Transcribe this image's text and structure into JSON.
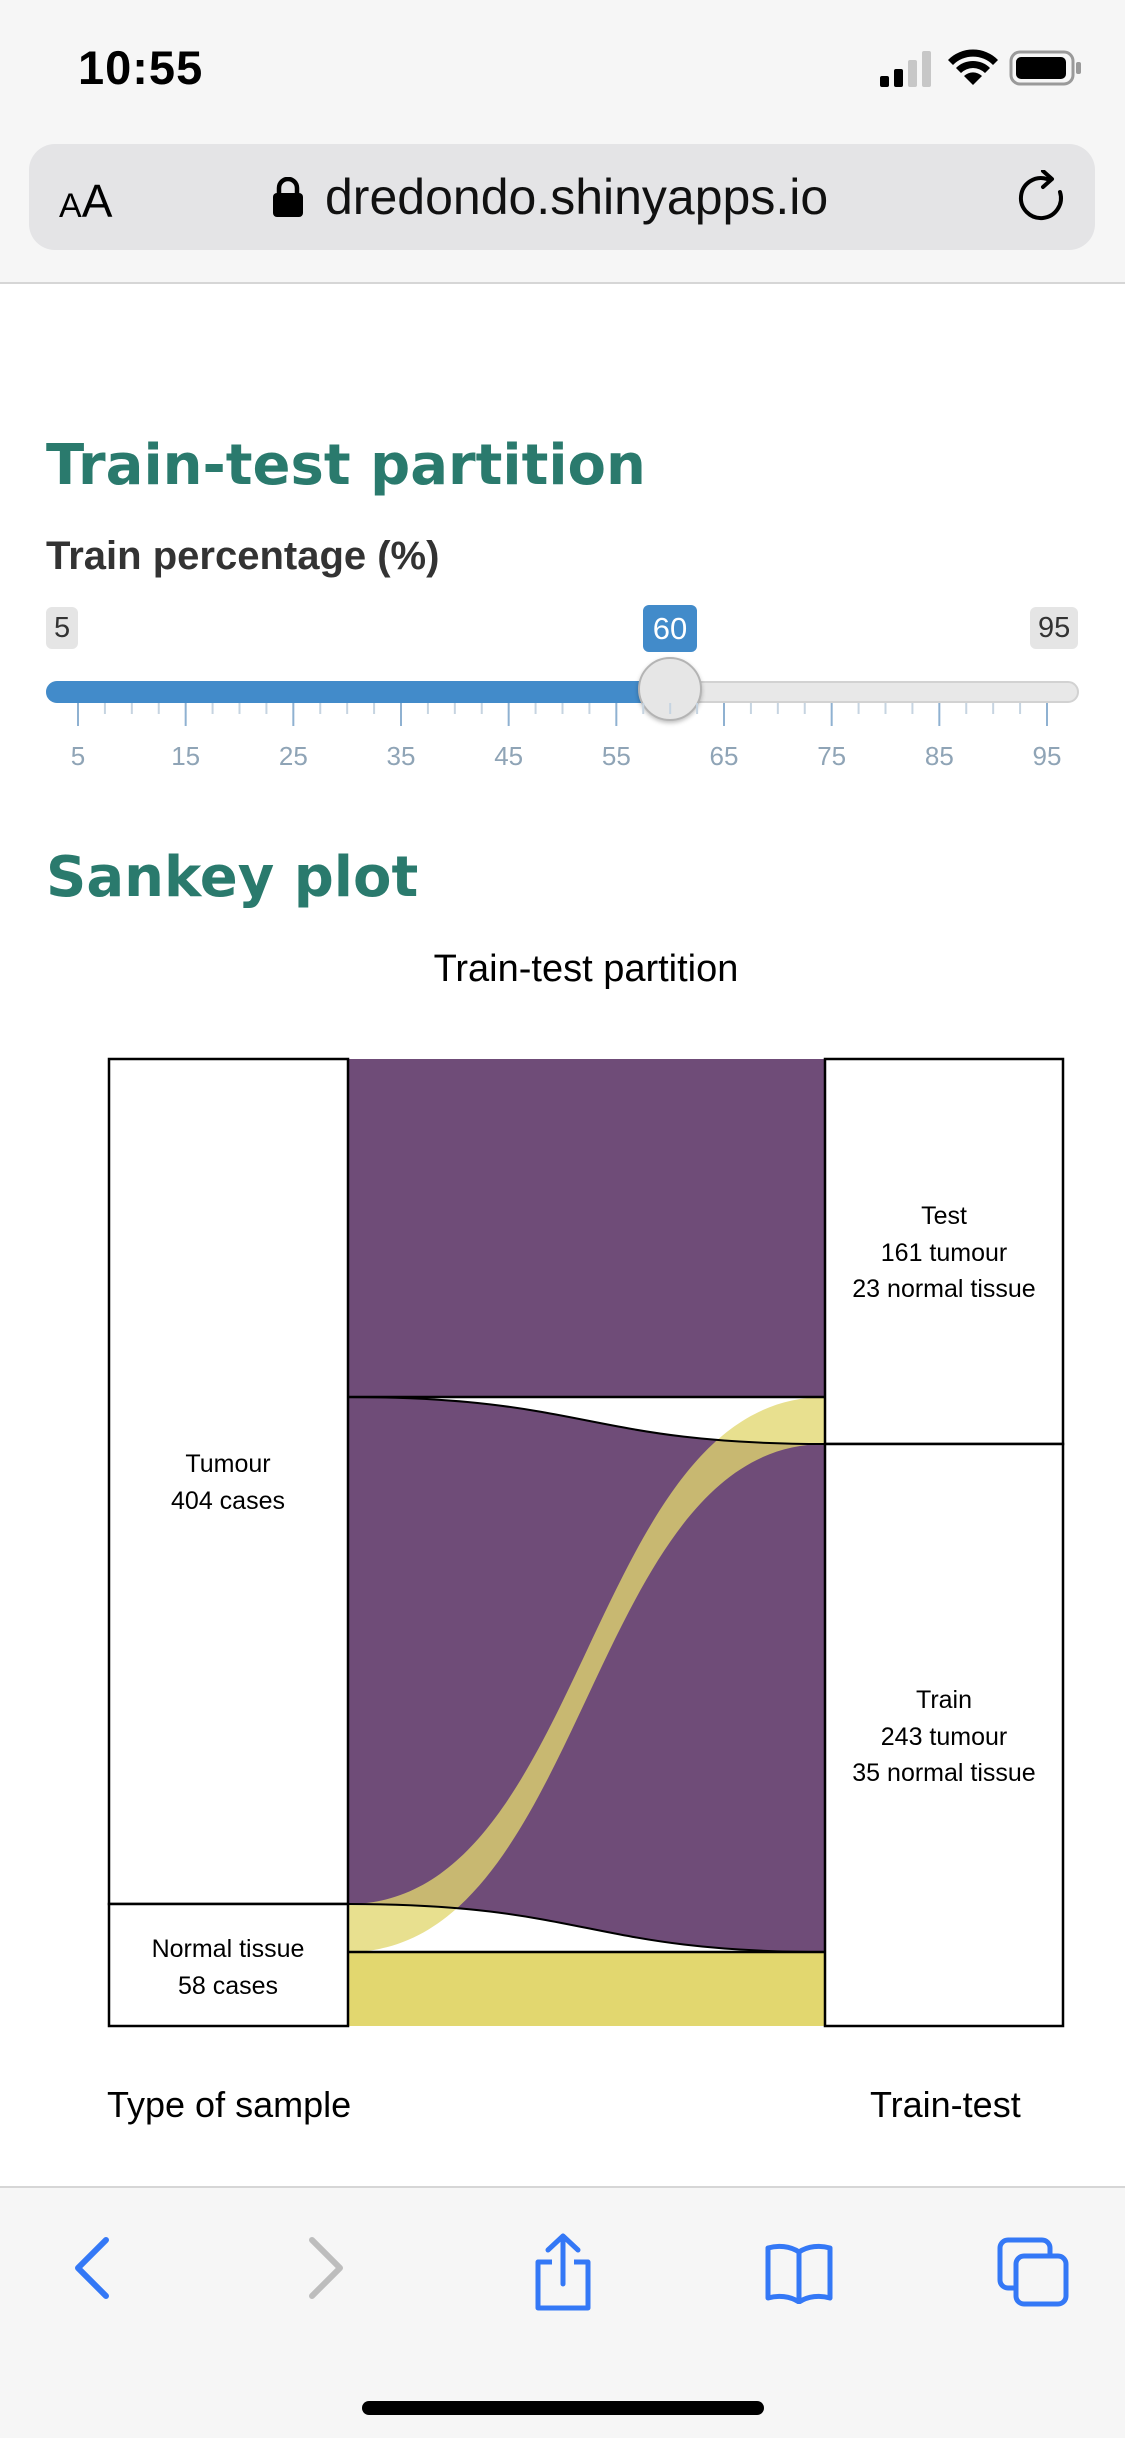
{
  "status_bar": {
    "time": "10:55"
  },
  "browser": {
    "aa_label_small": "A",
    "aa_label_large": "A",
    "url": "dredondo.shinyapps.io"
  },
  "colors": {
    "accent_heading": "#2a7a6d",
    "slider_blue": "#428bca",
    "sankey_purple": "#6f4c78",
    "sankey_yellow": "#e2d76f",
    "ios_blue": "#3478f6"
  },
  "partition": {
    "heading": "Train-test partition",
    "slider": {
      "label": "Train percentage (%)",
      "min_label": "5",
      "max_label": "95",
      "value_label": "60",
      "min": 5,
      "max": 95,
      "value": 60,
      "ticks": [
        "5",
        "15",
        "25",
        "35",
        "45",
        "55",
        "65",
        "75",
        "85",
        "95"
      ]
    }
  },
  "sankey": {
    "heading": "Sankey plot",
    "plot_title": "Train-test partition",
    "left_axis_label": "Type of sample",
    "right_axis_label": "Train-test",
    "left_nodes": {
      "tumour": {
        "line1": "Tumour",
        "line2": "404 cases"
      },
      "normal": {
        "line1": "Normal tissue",
        "line2": "58 cases"
      }
    },
    "right_nodes": {
      "test": {
        "line1": "Test",
        "line2": "161 tumour",
        "line3": "23 normal tissue"
      },
      "train": {
        "line1": "Train",
        "line2": "243 tumour",
        "line3": "35 normal tissue"
      }
    }
  },
  "toolbar": {
    "icons": [
      "back-chevron-icon",
      "forward-chevron-icon",
      "share-icon",
      "bookmarks-icon",
      "tabs-icon"
    ]
  }
}
